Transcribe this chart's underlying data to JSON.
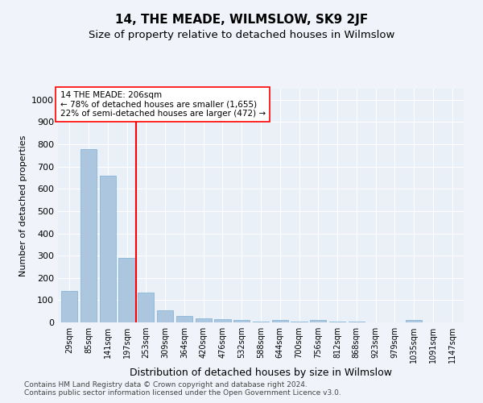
{
  "title": "14, THE MEADE, WILMSLOW, SK9 2JF",
  "subtitle": "Size of property relative to detached houses in Wilmslow",
  "xlabel": "Distribution of detached houses by size in Wilmslow",
  "ylabel": "Number of detached properties",
  "categories": [
    "29sqm",
    "85sqm",
    "141sqm",
    "197sqm",
    "253sqm",
    "309sqm",
    "364sqm",
    "420sqm",
    "476sqm",
    "532sqm",
    "588sqm",
    "644sqm",
    "700sqm",
    "756sqm",
    "812sqm",
    "868sqm",
    "923sqm",
    "979sqm",
    "1035sqm",
    "1091sqm",
    "1147sqm"
  ],
  "values": [
    140,
    780,
    660,
    290,
    135,
    53,
    28,
    18,
    15,
    10,
    5,
    10,
    5,
    10,
    5,
    5,
    0,
    0,
    12,
    0,
    0
  ],
  "bar_color": "#adc6e0",
  "bar_edge_color": "#7aafd4",
  "vline_x": 3.5,
  "vline_color": "red",
  "annotation_text": "14 THE MEADE: 206sqm\n← 78% of detached houses are smaller (1,655)\n22% of semi-detached houses are larger (472) →",
  "annotation_box_color": "white",
  "annotation_box_edge_color": "red",
  "ylim": [
    0,
    1050
  ],
  "yticks": [
    0,
    100,
    200,
    300,
    400,
    500,
    600,
    700,
    800,
    900,
    1000
  ],
  "footer1": "Contains HM Land Registry data © Crown copyright and database right 2024.",
  "footer2": "Contains public sector information licensed under the Open Government Licence v3.0.",
  "background_color": "#f0f4fa",
  "plot_background_color": "#eaf0f8",
  "title_fontsize": 11,
  "subtitle_fontsize": 9.5,
  "xlabel_fontsize": 9,
  "ylabel_fontsize": 8,
  "footer_fontsize": 6.5
}
